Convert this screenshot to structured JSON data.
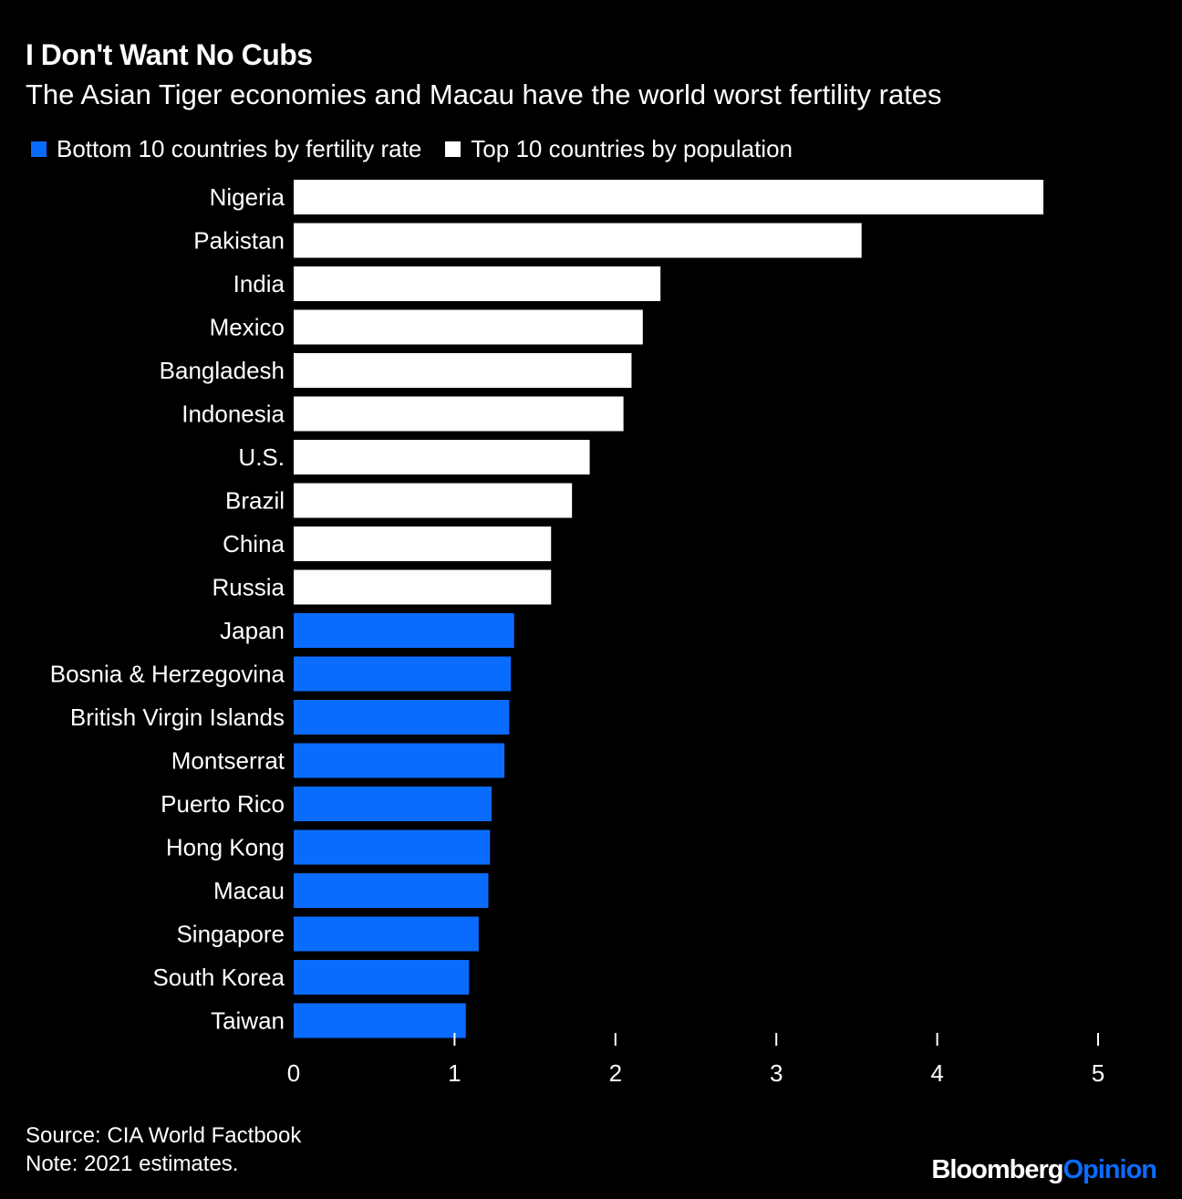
{
  "title": "I Don't Want No Cubs",
  "subtitle": "The Asian Tiger economies and Macau have the world worst fertility rates",
  "legend": [
    {
      "label": "Bottom 10 countries by fertility rate",
      "color": "#0a6cff"
    },
    {
      "label": "Top 10 countries by population",
      "color": "#ffffff"
    }
  ],
  "chart_data": {
    "type": "bar",
    "orientation": "horizontal",
    "categories": [
      "Nigeria",
      "Pakistan",
      "India",
      "Mexico",
      "Bangladesh",
      "Indonesia",
      "U.S.",
      "Brazil",
      "China",
      "Russia",
      "Japan",
      "Bosnia & Herzegovina",
      "British Virgin Islands",
      "Montserrat",
      "Puerto Rico",
      "Hong Kong",
      "Macau",
      "Singapore",
      "South Korea",
      "Taiwan"
    ],
    "values": [
      4.66,
      3.53,
      2.28,
      2.17,
      2.1,
      2.05,
      1.84,
      1.73,
      1.6,
      1.6,
      1.37,
      1.35,
      1.34,
      1.31,
      1.23,
      1.22,
      1.21,
      1.15,
      1.09,
      1.07
    ],
    "groups": [
      "Top 10 countries by population",
      "Top 10 countries by population",
      "Top 10 countries by population",
      "Top 10 countries by population",
      "Top 10 countries by population",
      "Top 10 countries by population",
      "Top 10 countries by population",
      "Top 10 countries by population",
      "Top 10 countries by population",
      "Top 10 countries by population",
      "Bottom 10 countries by fertility rate",
      "Bottom 10 countries by fertility rate",
      "Bottom 10 countries by fertility rate",
      "Bottom 10 countries by fertility rate",
      "Bottom 10 countries by fertility rate",
      "Bottom 10 countries by fertility rate",
      "Bottom 10 countries by fertility rate",
      "Bottom 10 countries by fertility rate",
      "Bottom 10 countries by fertility rate",
      "Bottom 10 countries by fertility rate"
    ],
    "xticks": [
      0,
      1,
      2,
      3,
      4,
      5
    ],
    "xlim": [
      0,
      5
    ],
    "grid": false,
    "legend_position": "top-left"
  },
  "footer": {
    "source": "Source: CIA World Factbook",
    "note": "Note: 2021 estimates."
  },
  "brand": {
    "part1": "Bloomberg",
    "part2": "Opinion",
    "part2_color": "#0a6cff"
  }
}
